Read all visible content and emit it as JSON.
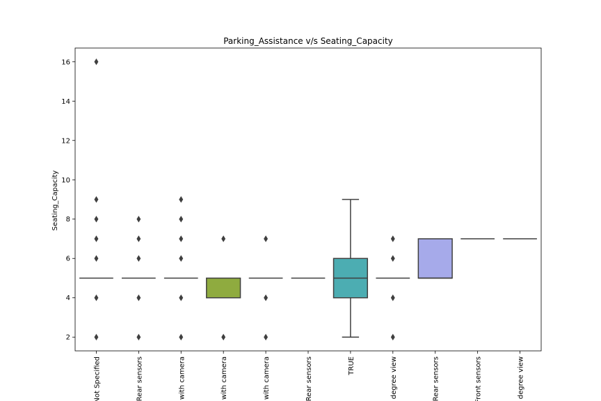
{
  "chart_data": {
    "type": "box",
    "title": "Parking_Assistance v/s Seating_Capacity",
    "xlabel": "",
    "ylabel": "Seating_Capacity",
    "ylim": [
      1.3,
      16.7
    ],
    "yticks": [
      2,
      4,
      6,
      8,
      10,
      12,
      14,
      16
    ],
    "grid": false,
    "categories": [
      "Not Specified",
      "Rear sensors",
      "with camera",
      "with camera",
      "with camera",
      "Rear sensors",
      "TRUE",
      "degree view",
      "Rear sensors",
      "Front sensors",
      "degree view"
    ],
    "boxes": [
      {
        "q1": 5,
        "median": 5,
        "q3": 5,
        "whisker_low": 5,
        "whisker_high": 5,
        "outliers": [
          2,
          4,
          6,
          7,
          8,
          9,
          16
        ],
        "color": "#3274a1"
      },
      {
        "q1": 5,
        "median": 5,
        "q3": 5,
        "whisker_low": 5,
        "whisker_high": 5,
        "outliers": [
          2,
          4,
          6,
          7,
          8
        ],
        "color": "#e1812c"
      },
      {
        "q1": 5,
        "median": 5,
        "q3": 5,
        "whisker_low": 5,
        "whisker_high": 5,
        "outliers": [
          2,
          4,
          6,
          7,
          8,
          9
        ],
        "color": "#3a923a"
      },
      {
        "q1": 4,
        "median": 4,
        "q3": 5,
        "whisker_low": 4,
        "whisker_high": 5,
        "outliers": [
          2,
          7
        ],
        "color": "#8fab3f"
      },
      {
        "q1": 5,
        "median": 5,
        "q3": 5,
        "whisker_low": 5,
        "whisker_high": 5,
        "outliers": [
          2,
          4,
          7
        ],
        "color": "#9372b2"
      },
      {
        "q1": 5,
        "median": 5,
        "q3": 5,
        "whisker_low": 5,
        "whisker_high": 5,
        "outliers": [],
        "color": "#845b53"
      },
      {
        "q1": 4,
        "median": 5,
        "q3": 6,
        "whisker_low": 2,
        "whisker_high": 9,
        "outliers": [],
        "color": "#4cadb2"
      },
      {
        "q1": 5,
        "median": 5,
        "q3": 5,
        "whisker_low": 5,
        "whisker_high": 5,
        "outliers": [
          2,
          4,
          6,
          7
        ],
        "color": "#7f7f7f"
      },
      {
        "q1": 5,
        "median": 5,
        "q3": 7,
        "whisker_low": 5,
        "whisker_high": 7,
        "outliers": [],
        "color": "#a6aaea"
      },
      {
        "q1": 7,
        "median": 7,
        "q3": 7,
        "whisker_low": 7,
        "whisker_high": 7,
        "outliers": [],
        "color": "#8c8c8c"
      },
      {
        "q1": 7,
        "median": 7,
        "q3": 7,
        "whisker_low": 7,
        "whisker_high": 7,
        "outliers": [],
        "color": "#8c8c8c"
      }
    ]
  }
}
